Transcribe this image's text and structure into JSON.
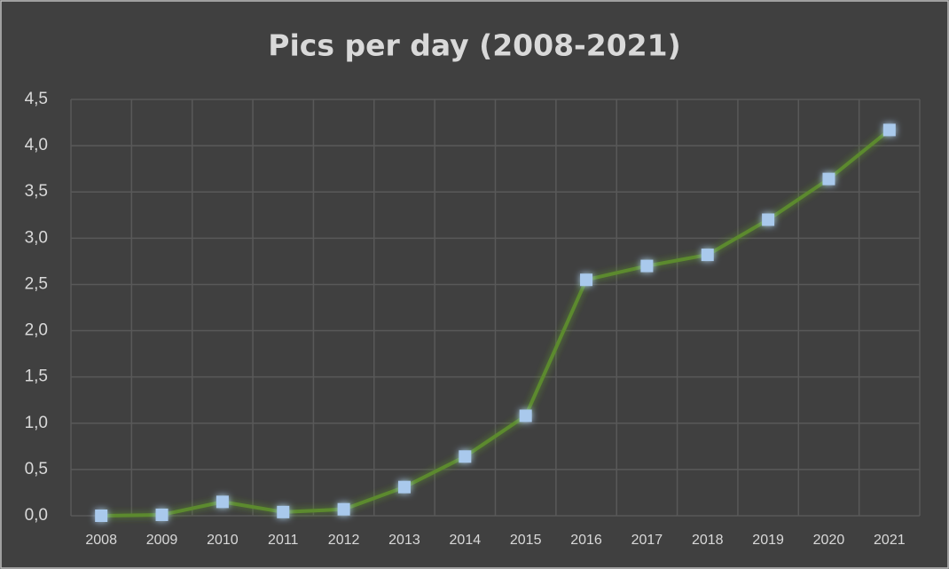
{
  "chart_data": {
    "type": "line",
    "title": "Pics per day (2008-2021)",
    "categories": [
      "2008",
      "2009",
      "2010",
      "2011",
      "2012",
      "2013",
      "2014",
      "2015",
      "2016",
      "2017",
      "2018",
      "2019",
      "2020",
      "2021"
    ],
    "values": [
      0.0,
      0.01,
      0.15,
      0.04,
      0.07,
      0.31,
      0.64,
      1.08,
      2.55,
      2.7,
      2.82,
      3.2,
      3.64,
      4.17
    ],
    "color": "#5b8a2e",
    "marker_color": "#a9c9ec",
    "ylim": [
      0,
      4.5
    ],
    "yticks": [
      {
        "value": 0,
        "label": "0,0"
      },
      {
        "value": 0.5,
        "label": "0,5"
      },
      {
        "value": 1,
        "label": "1,0"
      },
      {
        "value": 1.5,
        "label": "1,5"
      },
      {
        "value": 2,
        "label": "2,0"
      },
      {
        "value": 2.5,
        "label": "2,5"
      },
      {
        "value": 3,
        "label": "3,0"
      },
      {
        "value": 3.5,
        "label": "3,5"
      },
      {
        "value": 4,
        "label": "4,0"
      },
      {
        "value": 4.5,
        "label": "4,5"
      }
    ],
    "grid": true
  }
}
